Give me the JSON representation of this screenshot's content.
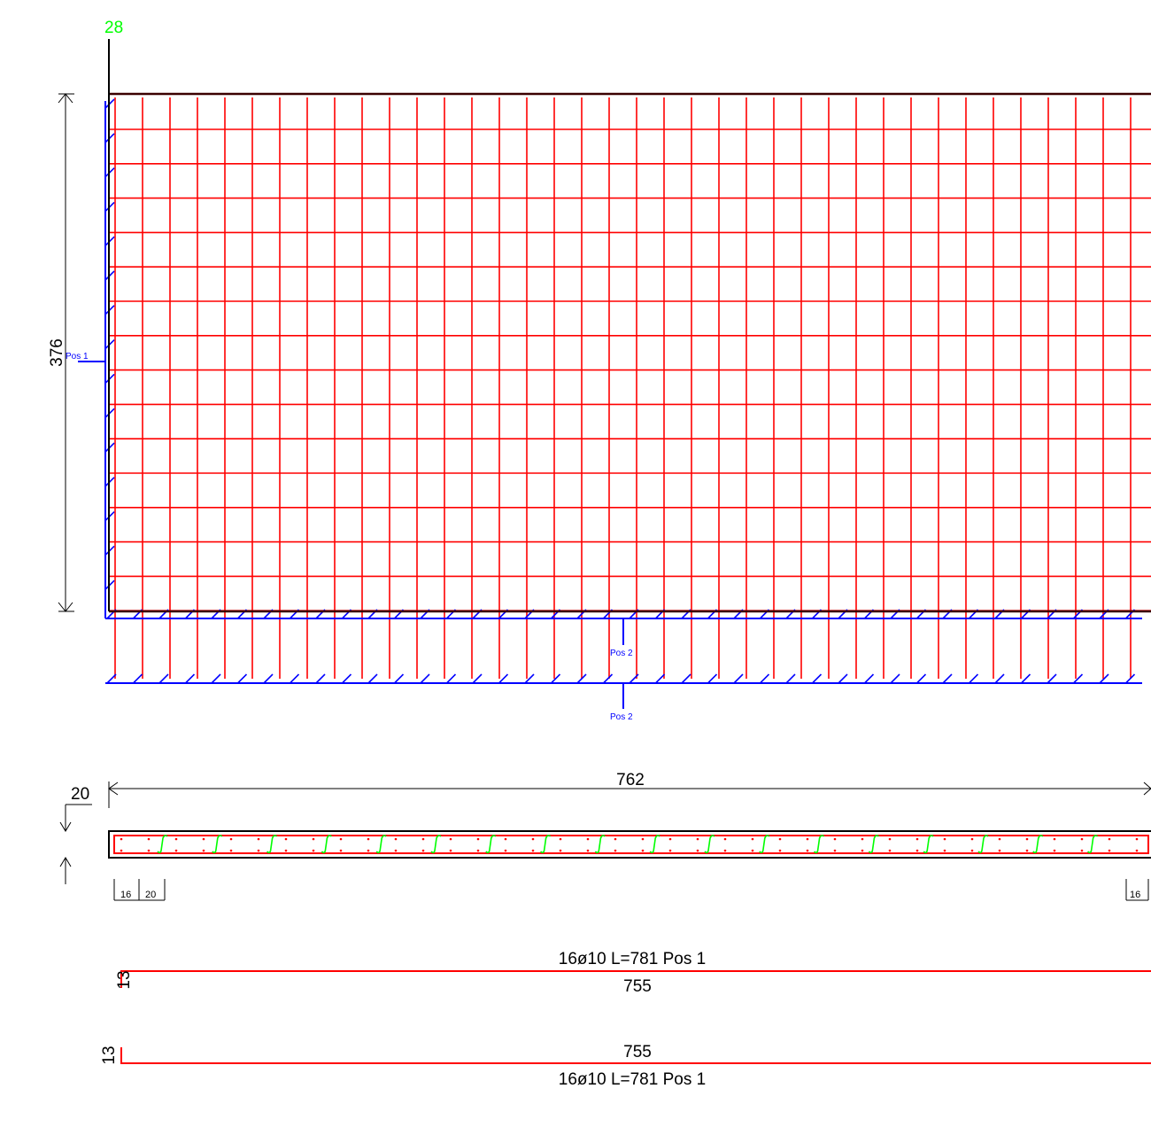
{
  "colors": {
    "rebar": "#ff0000",
    "distribution": "#0000ff",
    "outline": "#000000",
    "marker": "#00ff00"
  },
  "markers": {
    "top_number": "28"
  },
  "dimensions": {
    "height": "376",
    "length": "762",
    "thickness": "20",
    "spacing_edge_left": "16",
    "spacing_bar": "20",
    "spacing_edge_right": "16"
  },
  "position_labels": {
    "pos1": "Pos 1",
    "pos2_upper": "Pos 2",
    "pos2_lower": "Pos 2"
  },
  "bar_schedule": [
    {
      "label": "16ø10 L=781 Pos 1",
      "length": "755",
      "hook": "13"
    },
    {
      "label": "16ø10 L=781 Pos 1",
      "length": "755",
      "hook": "13"
    }
  ]
}
